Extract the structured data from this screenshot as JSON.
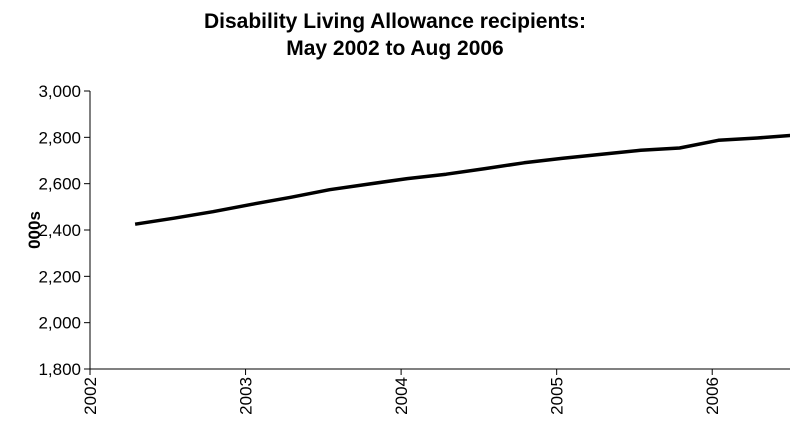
{
  "chart_data": {
    "type": "line",
    "title_lines": [
      "Disability Living Allowance recipients:",
      "May 2002 to Aug 2006"
    ],
    "xlabel": "",
    "ylabel": "000s",
    "ylim": [
      1800,
      3000
    ],
    "yticks": [
      1800,
      2000,
      2200,
      2400,
      2600,
      2800,
      3000
    ],
    "ytick_labels": [
      "1,800",
      "2,000",
      "2,200",
      "2,400",
      "2,600",
      "2,800",
      "3,000"
    ],
    "xlim": [
      2002,
      2006.5
    ],
    "xticks": [
      2002,
      2003,
      2004,
      2005,
      2006
    ],
    "xtick_labels": [
      "2002",
      "2003",
      "2004",
      "2005",
      "2006"
    ],
    "grid": false,
    "series": [
      {
        "x": [
          2002.29,
          2002.54,
          2002.79,
          2003.04,
          2003.29,
          2003.54,
          2003.79,
          2004.04,
          2004.29,
          2004.54,
          2004.79,
          2005.04,
          2005.29,
          2005.54,
          2005.79,
          2006.04,
          2006.29,
          2006.54
        ],
        "values": [
          2425,
          2451,
          2479,
          2511,
          2541,
          2574,
          2598,
          2622,
          2641,
          2665,
          2690,
          2710,
          2727,
          2744,
          2754,
          2787,
          2797,
          2810
        ]
      }
    ],
    "colors": {
      "line": "#000000",
      "axis": "#000000"
    }
  }
}
